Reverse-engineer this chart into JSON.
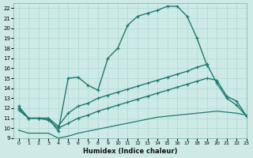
{
  "xlabel": "Humidex (Indice chaleur)",
  "background_color": "#cdeae7",
  "grid_color": "#b0d8d4",
  "line_color": "#1e7a70",
  "xlim": [
    -0.5,
    23
  ],
  "ylim": [
    9,
    22.5
  ],
  "xticks": [
    0,
    1,
    2,
    3,
    4,
    5,
    6,
    7,
    8,
    9,
    10,
    11,
    12,
    13,
    14,
    15,
    16,
    17,
    18,
    19,
    20,
    21,
    22,
    23
  ],
  "yticks": [
    9,
    10,
    11,
    12,
    13,
    14,
    15,
    16,
    17,
    18,
    19,
    20,
    21,
    22
  ],
  "curve1_x": [
    0,
    1,
    2,
    3,
    4,
    5,
    6,
    7,
    8,
    9,
    10,
    11,
    12,
    13,
    14,
    15,
    16,
    17,
    18,
    19,
    20,
    21,
    22,
    23
  ],
  "curve1_y": [
    12.2,
    11.0,
    11.0,
    11.0,
    9.7,
    15.0,
    15.1,
    14.3,
    13.8,
    17.0,
    18.0,
    20.3,
    21.2,
    21.5,
    21.8,
    22.2,
    22.2,
    21.2,
    19.0,
    16.3,
    null,
    null,
    null,
    null
  ],
  "curve2_x": [
    0,
    1,
    2,
    3,
    4,
    5,
    6,
    7,
    8,
    9,
    10,
    11,
    12,
    13,
    14,
    15,
    16,
    17,
    18,
    19,
    20,
    21,
    22,
    23
  ],
  "curve2_y": [
    12.0,
    11.0,
    11.0,
    11.0,
    10.2,
    11.5,
    12.2,
    12.5,
    13.0,
    13.3,
    13.6,
    13.9,
    14.2,
    14.5,
    14.8,
    15.1,
    15.4,
    15.7,
    16.1,
    16.4,
    14.5,
    13.0,
    12.3,
    11.2
  ],
  "curve3_x": [
    0,
    1,
    2,
    3,
    4,
    5,
    6,
    7,
    8,
    9,
    10,
    11,
    12,
    13,
    14,
    15,
    16,
    17,
    18,
    19,
    20,
    21,
    22,
    23
  ],
  "curve3_y": [
    11.8,
    11.0,
    11.0,
    10.8,
    10.0,
    10.5,
    11.0,
    11.3,
    11.7,
    12.0,
    12.3,
    12.6,
    12.9,
    13.2,
    13.5,
    13.8,
    14.1,
    14.4,
    14.7,
    15.0,
    14.8,
    13.2,
    12.7,
    11.2
  ],
  "curve4_x": [
    0,
    1,
    2,
    3,
    4,
    5,
    6,
    7,
    8,
    9,
    10,
    11,
    12,
    13,
    14,
    15,
    16,
    17,
    18,
    19,
    20,
    21,
    22,
    23
  ],
  "curve4_y": [
    9.8,
    9.5,
    9.5,
    9.5,
    9.0,
    9.2,
    9.5,
    9.7,
    9.9,
    10.1,
    10.3,
    10.5,
    10.7,
    10.9,
    11.1,
    11.2,
    11.3,
    11.4,
    11.5,
    11.6,
    11.7,
    11.6,
    11.5,
    11.3
  ]
}
